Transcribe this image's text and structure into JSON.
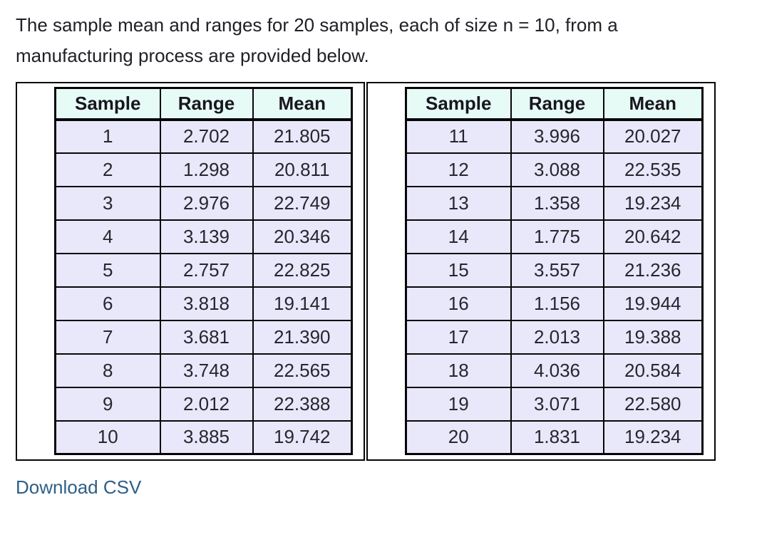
{
  "intro": {
    "line1": "The sample mean and ranges for 20 samples, each of size n = 10, from a",
    "line2": "manufacturing process are provided below."
  },
  "tables": {
    "columns": [
      "Sample",
      "Range",
      "Mean"
    ],
    "left": {
      "rows": [
        [
          "1",
          "2.702",
          "21.805"
        ],
        [
          "2",
          "1.298",
          "20.811"
        ],
        [
          "3",
          "2.976",
          "22.749"
        ],
        [
          "4",
          "3.139",
          "20.346"
        ],
        [
          "5",
          "2.757",
          "22.825"
        ],
        [
          "6",
          "3.818",
          "19.141"
        ],
        [
          "7",
          "3.681",
          "21.390"
        ],
        [
          "8",
          "3.748",
          "22.565"
        ],
        [
          "9",
          "2.012",
          "22.388"
        ],
        [
          "10",
          "3.885",
          "19.742"
        ]
      ]
    },
    "right": {
      "rows": [
        [
          "11",
          "3.996",
          "20.027"
        ],
        [
          "12",
          "3.088",
          "22.535"
        ],
        [
          "13",
          "1.358",
          "19.234"
        ],
        [
          "14",
          "1.775",
          "20.642"
        ],
        [
          "15",
          "3.557",
          "21.236"
        ],
        [
          "16",
          "1.156",
          "19.944"
        ],
        [
          "17",
          "2.013",
          "19.388"
        ],
        [
          "18",
          "4.036",
          "20.584"
        ],
        [
          "19",
          "3.071",
          "22.580"
        ],
        [
          "20",
          "1.831",
          "19.234"
        ]
      ]
    }
  },
  "download": {
    "label": "Download CSV"
  },
  "colors": {
    "header_bg": "#e7fbf6",
    "row_bg": "#e9e7fa",
    "border": "#060608",
    "link": "#2e5f87"
  }
}
